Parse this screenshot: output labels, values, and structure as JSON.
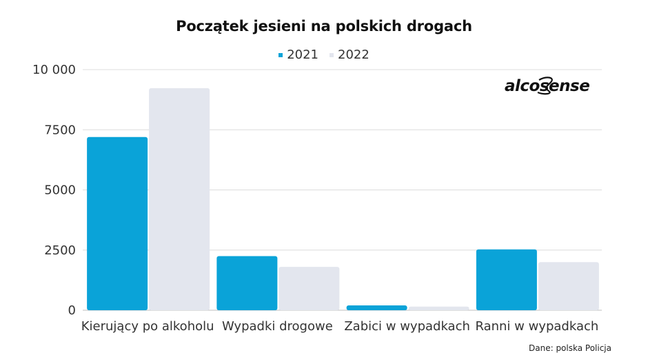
{
  "chart_data": {
    "type": "bar",
    "title": "Początek jesieni na polskich drogach",
    "categories": [
      "Kierujący po alkoholu",
      "Wypadki drogowe",
      "Zabici w wypadkach",
      "Ranni w wypadkach"
    ],
    "series": [
      {
        "name": "2021",
        "color": "#0aa3d8",
        "values": [
          7200,
          2250,
          200,
          2530
        ]
      },
      {
        "name": "2022",
        "color": "#e3e6ee",
        "values": [
          9230,
          1800,
          150,
          2000
        ]
      }
    ],
    "ylim": [
      0,
      10000
    ],
    "yticks": [
      0,
      2500,
      5000,
      7500,
      10000
    ],
    "ytick_labels": [
      "0",
      "2500",
      "5000",
      "7500",
      "10 000"
    ],
    "grid": true,
    "legend_position": "top-center"
  },
  "logo_text": "alcosense",
  "source": "Dane: polska Policja"
}
